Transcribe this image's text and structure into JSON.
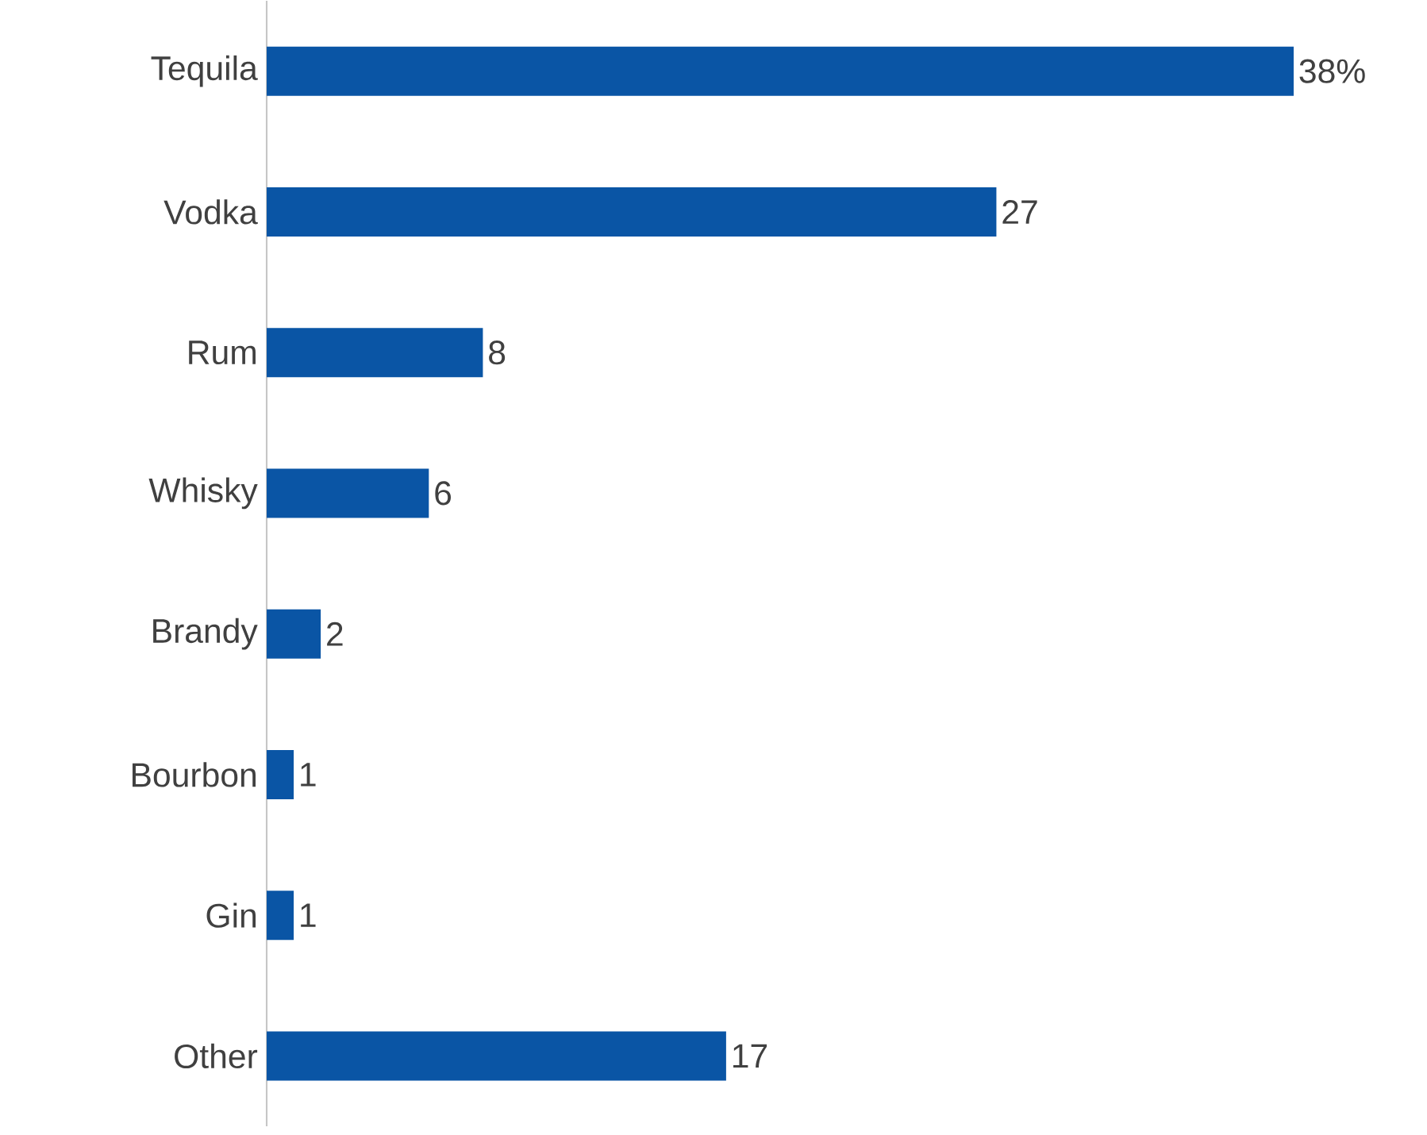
{
  "chart_data": {
    "type": "bar",
    "orientation": "horizontal",
    "categories": [
      "Tequila",
      "Vodka",
      "Rum",
      "Whisky",
      "Brandy",
      "Bourbon",
      "Gin",
      "Other"
    ],
    "values": [
      38,
      27,
      8,
      6,
      2,
      1,
      1,
      17
    ],
    "value_labels": [
      "38%",
      "27",
      "8",
      "6",
      "2",
      "1",
      "1",
      "17"
    ],
    "color": "#0a55a5"
  }
}
